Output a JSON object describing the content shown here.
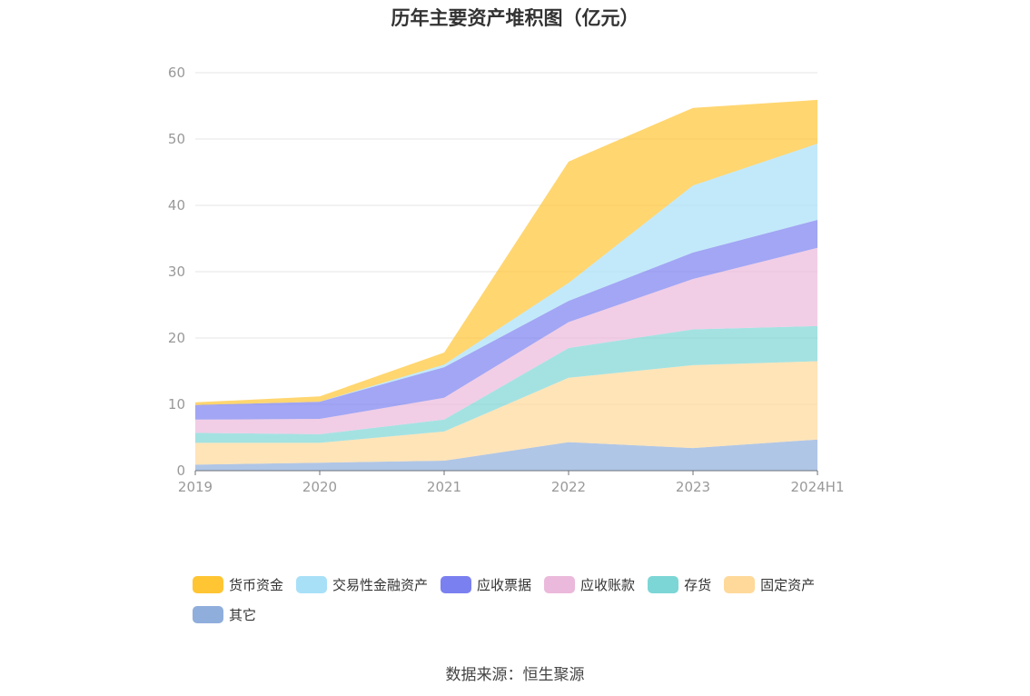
{
  "chart_data": {
    "type": "area",
    "stacked": true,
    "title": "历年主要资产堆积图（亿元）",
    "categories": [
      "2019",
      "2020",
      "2021",
      "2022",
      "2023",
      "2024H1"
    ],
    "ylim": [
      0,
      60
    ],
    "yticks": [
      0,
      10,
      20,
      30,
      40,
      50,
      60
    ],
    "grid": true,
    "legend_position": "bottom",
    "series": [
      {
        "name": "其它",
        "color": "#8FAEDB",
        "values": [
          0.9,
          1.2,
          1.5,
          4.3,
          3.4,
          4.7
        ]
      },
      {
        "name": "固定资产",
        "color": "#FFD99A",
        "values": [
          3.3,
          3.0,
          4.4,
          9.7,
          12.5,
          11.8
        ]
      },
      {
        "name": "存货",
        "color": "#7DD6D6",
        "values": [
          1.5,
          1.3,
          1.8,
          4.5,
          5.4,
          5.3
        ]
      },
      {
        "name": "应收账款",
        "color": "#EBB9DB",
        "values": [
          2.0,
          2.3,
          3.3,
          3.9,
          7.6,
          11.8
        ]
      },
      {
        "name": "应收票据",
        "color": "#7B80F0",
        "values": [
          2.2,
          2.6,
          4.6,
          3.2,
          4.0,
          4.2
        ]
      },
      {
        "name": "交易性金融资产",
        "color": "#A8E0F8",
        "values": [
          0.0,
          0.0,
          0.4,
          2.7,
          10.1,
          11.5
        ]
      },
      {
        "name": "货币资金",
        "color": "#FFC533",
        "values": [
          0.4,
          0.8,
          1.8,
          18.3,
          11.7,
          6.6
        ]
      }
    ]
  },
  "legend": {
    "items": [
      {
        "label": "货币资金",
        "color": "#FFC533"
      },
      {
        "label": "交易性金融资产",
        "color": "#A8E0F8"
      },
      {
        "label": "应收票据",
        "color": "#7B80F0"
      },
      {
        "label": "应收账款",
        "color": "#EBB9DB"
      },
      {
        "label": "存货",
        "color": "#7DD6D6"
      },
      {
        "label": "固定资产",
        "color": "#FFD99A"
      },
      {
        "label": "其它",
        "color": "#8FAEDB"
      }
    ]
  },
  "source": "数据来源：恒生聚源"
}
